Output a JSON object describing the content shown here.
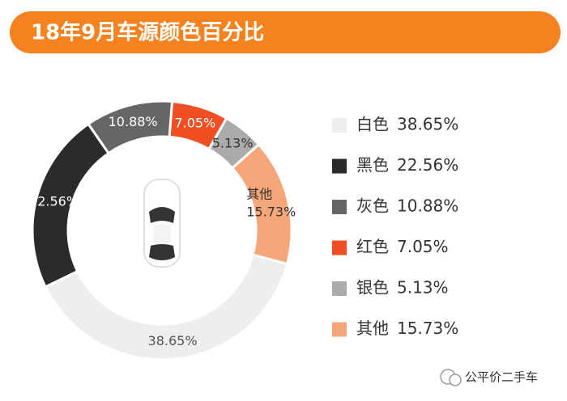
{
  "chart_data": {
    "type": "donut",
    "title": "18年9月车源颜色百分比",
    "categories": [
      "白色",
      "黑色",
      "灰色",
      "红色",
      "银色",
      "其他"
    ],
    "values": [
      38.65,
      22.56,
      10.88,
      7.05,
      5.13,
      15.73
    ],
    "value_labels": [
      "38.65%",
      "22.56%",
      "10.88%",
      "7.05%",
      "5.13%",
      "15.73%"
    ],
    "colors": [
      "#eeeeee",
      "#2b2b2b",
      "#666666",
      "#f04e23",
      "#ababab",
      "#f5a77a"
    ]
  },
  "watermark": "公平价二手车"
}
